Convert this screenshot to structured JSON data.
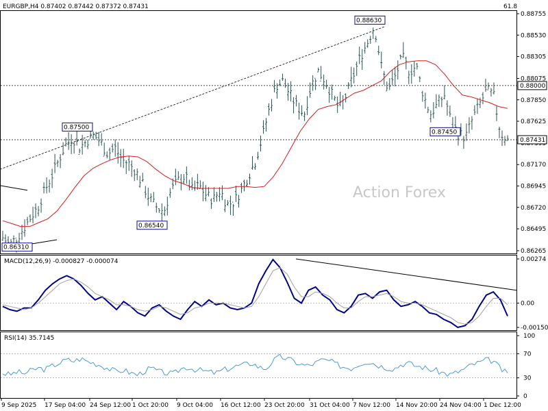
{
  "colors": {
    "background": "#ffffff",
    "frame": "#000000",
    "price_bars": "#2f4f4f",
    "moving_average": "#d81b1b",
    "macd_line": "#00008b",
    "macd_signal": "#a0a0a0",
    "rsi_line": "#4a9ad8",
    "level_lines": "#000000",
    "watermark": "#c8c8c8"
  },
  "header": {
    "symbol_info": "EURGBP,H4  0.87402 0.87442 0.87372 0.87431",
    "corner_value": "61.8"
  },
  "watermark": "Action Forex",
  "price_panel": {
    "y_ticks": [
      "0.88755",
      "0.88530",
      "0.88305",
      "0.88075",
      "0.87850",
      "0.87625",
      "0.87395",
      "0.87170",
      "0.86945",
      "0.86720",
      "0.86495",
      "0.86265"
    ],
    "current_price_tag": "0.87431",
    "resistance_tag": "0.88000",
    "annotations": [
      "0.88630",
      "0.87500",
      "0.87450",
      "0.86540",
      "0.86310"
    ]
  },
  "macd_panel": {
    "label": "MACD(12,26,9) -0.000827 -0.000074",
    "y_ticks": [
      "0.00274",
      "0.00",
      "-0.001505"
    ]
  },
  "rsi_panel": {
    "label": "RSI(14) 35.7145",
    "y_ticks": [
      "100",
      "70",
      "30",
      "0"
    ]
  },
  "x_ticks": [
    "9 Sep 2025",
    "17 Sep 04:00",
    "24 Sep 12:00",
    "1 Oct 20:00",
    "9 Oct 04:00",
    "16 Oct 12:00",
    "23 Oct 20:00",
    "31 Oct 04:00",
    "7 Nov 12:00",
    "14 Nov 20:00",
    "24 Nov 04:00",
    "1 Dec 12:00"
  ],
  "chart_data": [
    {
      "type": "line",
      "title": "EURGBP,H4",
      "series_kind": "ohlc_bars",
      "x": [
        "9 Sep 2025",
        "17 Sep 04:00",
        "24 Sep 12:00",
        "1 Oct 20:00",
        "9 Oct 04:00",
        "16 Oct 12:00",
        "23 Oct 20:00",
        "31 Oct 04:00",
        "7 Nov 12:00",
        "14 Nov 20:00",
        "24 Nov 04:00",
        "1 Dec 12:00"
      ],
      "close_path": [
        0.864,
        0.8633,
        0.864,
        0.865,
        0.8662,
        0.8672,
        0.869,
        0.8705,
        0.8722,
        0.8738,
        0.8745,
        0.8735,
        0.8742,
        0.8748,
        0.874,
        0.8728,
        0.8735,
        0.8722,
        0.8718,
        0.871,
        0.8695,
        0.868,
        0.8672,
        0.8668,
        0.869,
        0.87,
        0.8705,
        0.869,
        0.8695,
        0.8685,
        0.868,
        0.869,
        0.8675,
        0.8678,
        0.869,
        0.8705,
        0.872,
        0.8745,
        0.8775,
        0.88,
        0.8805,
        0.879,
        0.8778,
        0.877,
        0.88,
        0.8815,
        0.8805,
        0.879,
        0.8775,
        0.879,
        0.881,
        0.883,
        0.8845,
        0.8863,
        0.882,
        0.8795,
        0.881,
        0.883,
        0.8815,
        0.882,
        0.879,
        0.877,
        0.878,
        0.879,
        0.876,
        0.875,
        0.8745,
        0.8765,
        0.878,
        0.8795,
        0.879,
        0.875,
        0.8743
      ],
      "ma_path": [
        0.8658,
        0.8655,
        0.8652,
        0.8652,
        0.8656,
        0.866,
        0.8668,
        0.868,
        0.8693,
        0.8705,
        0.8713,
        0.8718,
        0.8722,
        0.8725,
        0.8726,
        0.8725,
        0.872,
        0.8712,
        0.8705,
        0.87,
        0.8697,
        0.8693,
        0.8692,
        0.8692,
        0.8692,
        0.8692,
        0.8694,
        0.8694,
        0.8693,
        0.8694,
        0.8704,
        0.8718,
        0.8735,
        0.8752,
        0.8765,
        0.8775,
        0.8778,
        0.878,
        0.8786,
        0.8792,
        0.8795,
        0.88,
        0.8805,
        0.8815,
        0.8822,
        0.8825,
        0.8826,
        0.8826,
        0.8822,
        0.8812,
        0.88,
        0.879,
        0.8788,
        0.8785,
        0.8782,
        0.8778,
        0.8776
      ],
      "ylim": [
        0.86265,
        0.88755
      ],
      "levels": [
        {
          "label": "0.88000",
          "value": 0.88,
          "style": "dotted"
        },
        {
          "label": "0.87431",
          "value": 0.87431,
          "style": "dotted"
        }
      ],
      "annotations": [
        {
          "text": "0.88630",
          "value": 0.8863
        },
        {
          "text": "0.87500",
          "value": 0.875
        },
        {
          "text": "0.87450",
          "value": 0.8745
        },
        {
          "text": "0.86540",
          "value": 0.8654
        },
        {
          "text": "0.86310",
          "value": 0.8631
        }
      ]
    },
    {
      "type": "line",
      "title": "MACD(12,26,9) -0.000827 -0.000074",
      "ylim": [
        -0.001505,
        0.00274
      ],
      "series": [
        {
          "values": [
            -0.0002,
            -0.0004,
            -0.0005,
            -0.0003,
            -0.0003,
            0.0002,
            0.0008,
            0.0012,
            0.0015,
            0.0017,
            0.0015,
            0.0011,
            0.0006,
            0.0002,
            0.0004,
            0.0,
            -0.0004,
            0.0001,
            -0.0002,
            -0.0006,
            -0.0008,
            -0.0003,
            -0.0001,
            -0.0005,
            -0.0008,
            -0.001,
            -0.0004,
            0.0001,
            -0.0002,
            0.0002,
            -0.0001,
            0.0,
            -0.0003,
            -0.0004,
            -0.0003,
            0.0,
            0.0012,
            0.002,
            0.0027,
            0.0022,
            0.0013,
            0.0003,
            0.0,
            0.0008,
            0.001,
            0.0005,
            0.0002,
            -0.0004,
            -0.0006,
            -0.0002,
            0.0005,
            0.0006,
            0.0003,
            0.0007,
            0.0008,
            0.0002,
            -0.0002,
            -0.0001,
            0.0001,
            -0.0002,
            -0.0006,
            -0.0007,
            -0.001,
            -0.0012,
            -0.0015,
            -0.0014,
            -0.001,
            -0.0002,
            0.0005,
            0.0007,
            0.0002,
            -0.0008
          ]
        },
        {
          "values": [
            -0.0001,
            -0.0002,
            -0.0003,
            -0.0004,
            -0.0003,
            0.0,
            0.0004,
            0.0008,
            0.0012,
            0.0014,
            0.0015,
            0.0013,
            0.001,
            0.0006,
            0.0004,
            0.0002,
            -0.0001,
            -0.0001,
            -0.0002,
            -0.0004,
            -0.0005,
            -0.0004,
            -0.0002,
            -0.0003,
            -0.0005,
            -0.0007,
            -0.0006,
            -0.0003,
            -0.0002,
            0.0,
            0.0,
            0.0,
            -0.0001,
            -0.0002,
            -0.0003,
            -0.0002,
            0.0004,
            0.0012,
            0.002,
            0.0022,
            0.0018,
            0.001,
            0.0004,
            0.0004,
            0.0007,
            0.0006,
            0.0004,
            0.0,
            -0.0003,
            -0.0003,
            0.0001,
            0.0004,
            0.0004,
            0.0005,
            0.0006,
            0.0004,
            0.0001,
            0.0,
            0.0,
            -0.0001,
            -0.0003,
            -0.0005,
            -0.0007,
            -0.0009,
            -0.0012,
            -0.0013,
            -0.0012,
            -0.0008,
            -0.0002,
            0.0003,
            0.0003,
            -0.0001
          ]
        }
      ]
    },
    {
      "type": "line",
      "title": "RSI(14) 35.7145",
      "ylim": [
        0,
        100
      ],
      "levels": [
        70,
        30
      ],
      "values": [
        38,
        35,
        40,
        37,
        42,
        46,
        44,
        50,
        55,
        60,
        58,
        62,
        57,
        54,
        50,
        45,
        40,
        43,
        38,
        35,
        42,
        46,
        40,
        38,
        36,
        45,
        48,
        44,
        42,
        40,
        38,
        43,
        46,
        50,
        52,
        55,
        48,
        45,
        58,
        65,
        62,
        57,
        52,
        50,
        55,
        60,
        58,
        52,
        48,
        46,
        52,
        57,
        55,
        50,
        47,
        45,
        52,
        55,
        50,
        48,
        44,
        42,
        38,
        35,
        40,
        45,
        52,
        55,
        60,
        58,
        45,
        36
      ]
    }
  ]
}
